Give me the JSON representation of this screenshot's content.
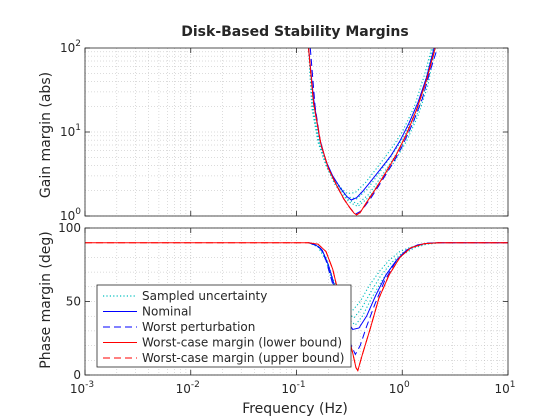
{
  "chart_data": {
    "type": "line",
    "title": "Disk-Based Stability Margins",
    "xlabel": "Frequency (Hz)",
    "xscale": "log",
    "xlim": [
      0.001,
      10
    ],
    "x_ticks": [
      0.001,
      0.01,
      0.1,
      1,
      10
    ],
    "x_tick_labels": [
      {
        "base": "10",
        "exp": "-3"
      },
      {
        "base": "10",
        "exp": "-2"
      },
      {
        "base": "10",
        "exp": "-1"
      },
      {
        "base": "10",
        "exp": "0"
      },
      {
        "base": "10",
        "exp": "1"
      }
    ],
    "grid": true,
    "minor_grid": true,
    "legend": {
      "location": "lower-left of bottom axes",
      "entries": [
        {
          "label": "Sampled uncertainty",
          "color": "#00bfbf",
          "style": "dotted"
        },
        {
          "label": "Nominal",
          "color": "#0000ff",
          "style": "solid"
        },
        {
          "label": "Worst perturbation",
          "color": "#0000ff",
          "style": "dashed"
        },
        {
          "label": "Worst-case margin (lower bound)",
          "color": "#ff0000",
          "style": "solid"
        },
        {
          "label": "Worst-case margin (upper bound)",
          "color": "#ff0000",
          "style": "dashed"
        }
      ]
    },
    "axes": [
      {
        "id": "gain",
        "ylabel": "Gain margin (abs)",
        "yscale": "log",
        "ylim": [
          1,
          100
        ],
        "y_ticks": [
          1,
          10,
          100
        ],
        "y_tick_labels": [
          {
            "base": "10",
            "exp": "0"
          },
          {
            "base": "10",
            "exp": "1"
          },
          {
            "base": "10",
            "exp": "2"
          }
        ],
        "series": [
          {
            "color": "#00bfbf",
            "style": "dotted",
            "x": [
              0.13,
              0.14,
              0.16,
              0.19,
              0.22,
              0.26,
              0.3,
              0.36,
              0.45,
              0.6,
              0.8,
              1.0,
              1.3,
              1.6,
              1.9
            ],
            "y": [
              100,
              20,
              8,
              4.2,
              2.9,
              2.2,
              1.85,
              1.9,
              2.5,
              4,
              6.5,
              10,
              20,
              45,
              100
            ]
          },
          {
            "color": "#00bfbf",
            "style": "dotted",
            "x": [
              0.13,
              0.14,
              0.16,
              0.19,
              0.22,
              0.26,
              0.3,
              0.37,
              0.47,
              0.62,
              0.82,
              1.05,
              1.35,
              1.65,
              1.95
            ],
            "y": [
              100,
              19,
              7.5,
              4,
              2.8,
              2.1,
              1.7,
              1.6,
              2.1,
              3.4,
              5.6,
              9,
              18,
              40,
              100
            ]
          },
          {
            "color": "#00bfbf",
            "style": "dotted",
            "x": [
              0.13,
              0.145,
              0.165,
              0.195,
              0.225,
              0.27,
              0.31,
              0.38,
              0.48,
              0.64,
              0.84,
              1.08,
              1.4,
              1.7,
              2.0
            ],
            "y": [
              100,
              18,
              7,
              3.7,
              2.6,
              1.95,
              1.55,
              1.4,
              1.8,
              3,
              5,
              8.2,
              17,
              38,
              100
            ]
          },
          {
            "color": "#00bfbf",
            "style": "dotted",
            "x": [
              0.13,
              0.145,
              0.17,
              0.2,
              0.23,
              0.27,
              0.32,
              0.38,
              0.49,
              0.65,
              0.86,
              1.1,
              1.42,
              1.75,
              2.05
            ],
            "y": [
              100,
              17,
              6.5,
              3.5,
              2.4,
              1.8,
              1.45,
              1.3,
              1.7,
              2.8,
              4.6,
              7.8,
              16,
              36,
              100
            ]
          },
          {
            "name": "Nominal",
            "color": "#0000ff",
            "style": "solid",
            "x": [
              0.13,
              0.145,
              0.165,
              0.19,
              0.22,
              0.26,
              0.3,
              0.33,
              0.37,
              0.42,
              0.5,
              0.62,
              0.78,
              0.95,
              1.15,
              1.4,
              1.7,
              2.0
            ],
            "y": [
              100,
              25,
              8.5,
              4.5,
              3,
              2.15,
              1.7,
              1.55,
              1.65,
              1.95,
              2.55,
              3.6,
              5.2,
              7.8,
              12.5,
              22,
              45,
              100
            ]
          },
          {
            "name": "Worst perturbation",
            "color": "#0000ff",
            "style": "dashed",
            "x": [
              0.135,
              0.15,
              0.17,
              0.2,
              0.24,
              0.28,
              0.32,
              0.36,
              0.41,
              0.5,
              0.64,
              0.82,
              1.0,
              1.25,
              1.55,
              1.85,
              2.15
            ],
            "y": [
              100,
              20,
              7,
              3.8,
              2.3,
              1.6,
              1.25,
              1.05,
              1.15,
              1.6,
              2.6,
              4.3,
              6.8,
              12.5,
              25,
              55,
              100
            ]
          },
          {
            "name": "Worst-case margin (lower bound)",
            "color": "#ff0000",
            "style": "solid",
            "x": [
              0.13,
              0.145,
              0.17,
              0.2,
              0.24,
              0.28,
              0.32,
              0.35,
              0.37,
              0.4,
              0.46,
              0.56,
              0.7,
              0.88,
              1.1,
              1.38,
              1.7,
              2.05
            ],
            "y": [
              100,
              22,
              7.2,
              3.7,
              2.3,
              1.6,
              1.25,
              1.08,
              1.03,
              1.1,
              1.45,
              2.1,
              3.3,
              5.4,
              9.5,
              19,
              42,
              100
            ]
          },
          {
            "name": "Worst-case margin (upper bound)",
            "color": "#ff0000",
            "style": "dashed",
            "x": [
              0.13,
              0.145,
              0.17,
              0.2,
              0.24,
              0.28,
              0.32,
              0.35,
              0.37,
              0.4,
              0.46,
              0.56,
              0.7,
              0.88,
              1.1,
              1.38,
              1.7,
              2.05
            ],
            "y": [
              100,
              22,
              7.2,
              3.7,
              2.3,
              1.6,
              1.25,
              1.08,
              1.03,
              1.1,
              1.45,
              2.1,
              3.3,
              5.4,
              9.5,
              19,
              42,
              100
            ]
          }
        ]
      },
      {
        "id": "phase",
        "ylabel": "Phase margin (deg)",
        "yscale": "linear",
        "ylim": [
          0,
          100
        ],
        "y_ticks": [
          0,
          50,
          100
        ],
        "y_tick_labels": [
          {
            "base": "0",
            "exp": ""
          },
          {
            "base": "50",
            "exp": ""
          },
          {
            "base": "100",
            "exp": ""
          }
        ],
        "series": [
          {
            "color": "#00bfbf",
            "style": "dotted",
            "x": [
              0.13,
              0.16,
              0.19,
              0.22,
              0.26,
              0.3,
              0.34,
              0.4,
              0.48,
              0.6,
              0.75,
              0.95,
              1.2,
              1.6,
              2.2
            ],
            "y": [
              90,
              88,
              80,
              66,
              54,
              46,
              44,
              50,
              60,
              70,
              78,
              84,
              87,
              89,
              90
            ]
          },
          {
            "color": "#00bfbf",
            "style": "dotted",
            "x": [
              0.13,
              0.16,
              0.19,
              0.22,
              0.26,
              0.3,
              0.35,
              0.41,
              0.5,
              0.62,
              0.78,
              1.0,
              1.25,
              1.65,
              2.25
            ],
            "y": [
              90,
              87.5,
              79,
              64,
              51,
              42,
              39,
              45,
              56,
              67,
              76,
              83,
              87,
              89,
              90
            ]
          },
          {
            "color": "#00bfbf",
            "style": "dotted",
            "x": [
              0.13,
              0.16,
              0.19,
              0.22,
              0.26,
              0.31,
              0.36,
              0.42,
              0.51,
              0.64,
              0.8,
              1.02,
              1.3,
              1.7,
              2.3
            ],
            "y": [
              90,
              87,
              78,
              62,
              48,
              38,
              34,
              40,
              52,
              64,
              74,
              82,
              86.5,
              89,
              90
            ]
          },
          {
            "name": "Nominal",
            "color": "#0000ff",
            "style": "solid",
            "x": [
              0.13,
              0.155,
              0.175,
              0.2,
              0.23,
              0.26,
              0.3,
              0.34,
              0.39,
              0.46,
              0.56,
              0.7,
              0.88,
              1.1,
              1.4,
              1.8,
              2.3,
              10
            ],
            "y": [
              90,
              88,
              85,
              75,
              60,
              47,
              37,
              31,
              32,
              40,
              54,
              68,
              78,
              85,
              88.5,
              89.8,
              90,
              90
            ]
          },
          {
            "name": "Worst perturbation",
            "color": "#0000ff",
            "style": "dashed",
            "x": [
              0.13,
              0.15,
              0.17,
              0.19,
              0.22,
              0.25,
              0.29,
              0.33,
              0.36,
              0.4,
              0.46,
              0.55,
              0.68,
              0.85,
              1.05,
              1.35,
              1.75,
              2.3,
              10
            ],
            "y": [
              90,
              89,
              86,
              78,
              62,
              46,
              32,
              20,
              14,
              20,
              33,
              48,
              64,
              76,
              84,
              88,
              89.7,
              90,
              90
            ]
          },
          {
            "name": "Worst-case margin (lower bound)",
            "color": "#ff0000",
            "style": "solid",
            "x": [
              0.001,
              0.1,
              0.13,
              0.16,
              0.19,
              0.22,
              0.26,
              0.3,
              0.34,
              0.365,
              0.38,
              0.42,
              0.5,
              0.6,
              0.75,
              0.95,
              1.2,
              1.6,
              2.2,
              10
            ],
            "y": [
              90,
              90,
              90,
              89,
              84,
              72,
              50,
              30,
              15,
              5,
              3,
              14,
              32,
              52,
              68,
              80,
              86.5,
              89.3,
              90,
              90
            ]
          },
          {
            "name": "Worst-case margin (upper bound)",
            "color": "#ff0000",
            "style": "dashed",
            "x": [
              0.001,
              0.1,
              0.13,
              0.16,
              0.19,
              0.22,
              0.26,
              0.3,
              0.34,
              0.365,
              0.38,
              0.42,
              0.5,
              0.6,
              0.75,
              0.95,
              1.2,
              1.6,
              2.2,
              10
            ],
            "y": [
              90,
              90,
              90,
              89,
              84,
              72,
              50,
              30,
              15,
              5,
              3,
              14,
              32,
              52,
              68,
              80,
              86.5,
              89.3,
              90,
              90
            ]
          }
        ]
      }
    ]
  }
}
